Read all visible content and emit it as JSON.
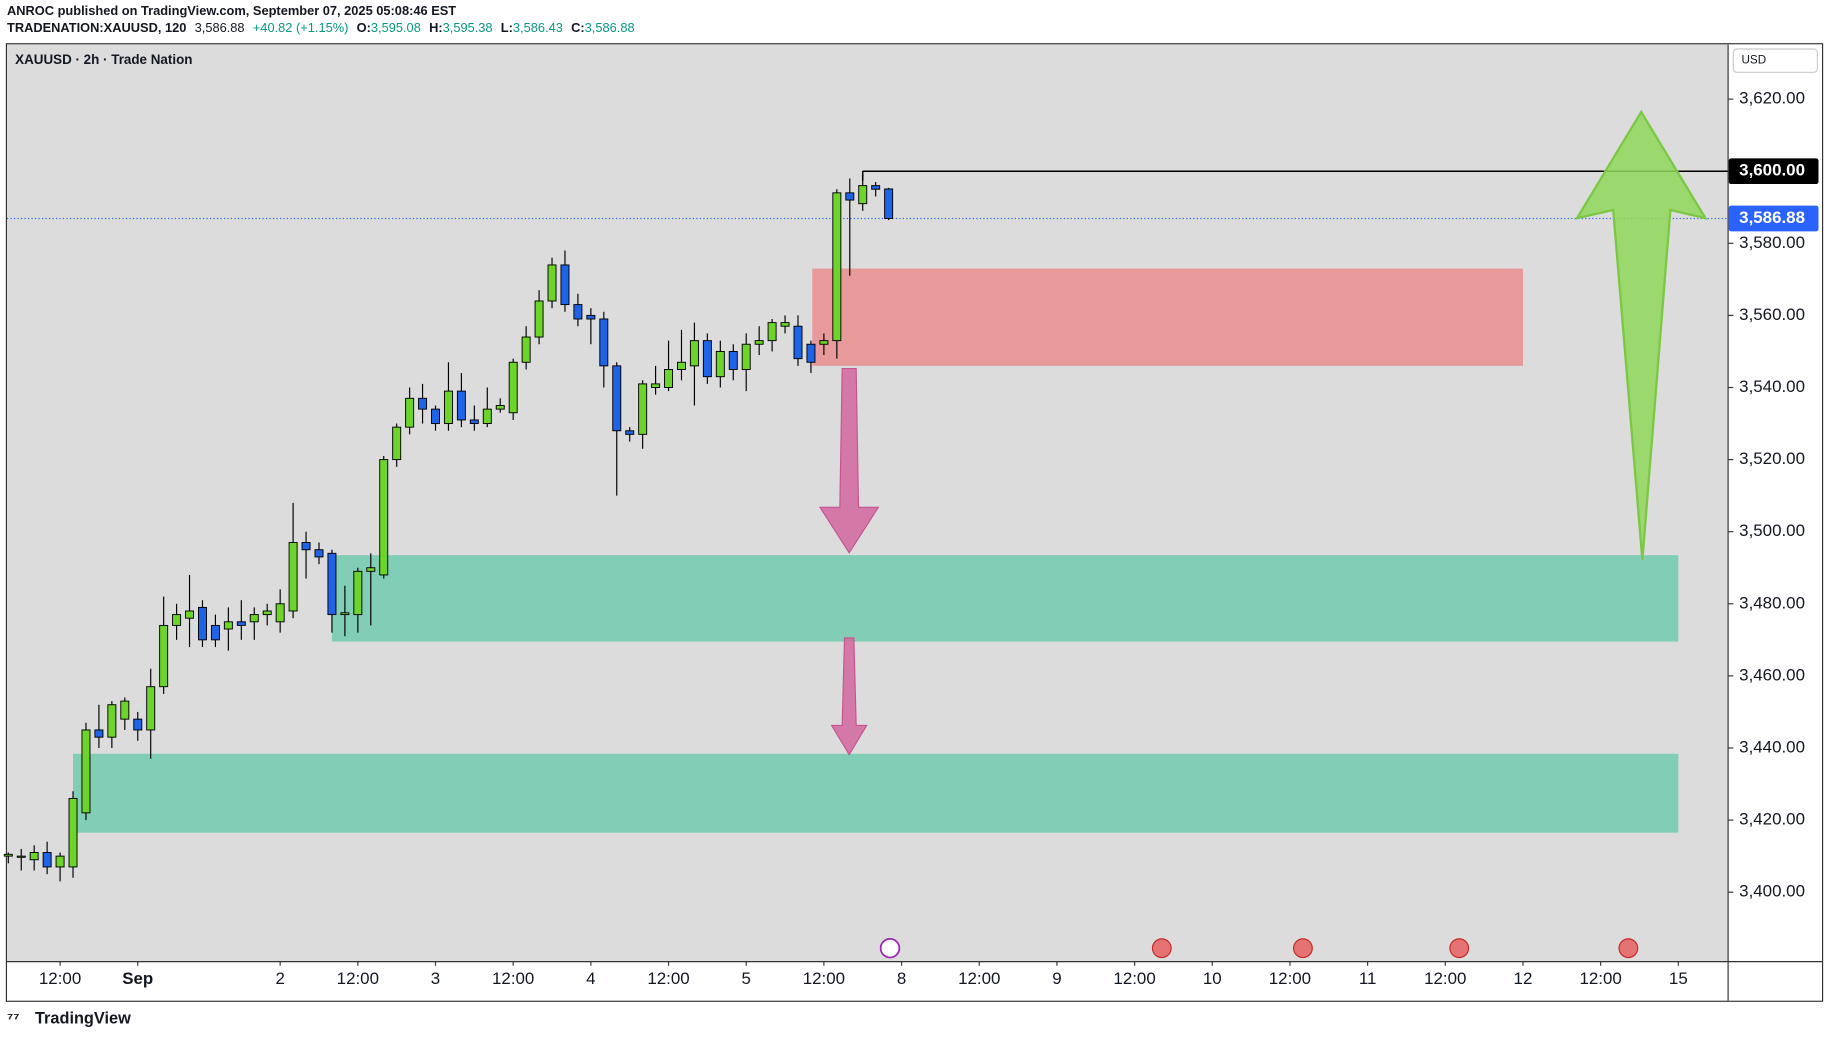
{
  "header": {
    "line1": "ANROC published on TradingView.com, September 07, 2025 05:08:46 EST",
    "symbol": "TRADENATION:XAUUSD, 120",
    "last": "3,586.88",
    "change": "+40.82 (+1.15%)",
    "o_key": "O:",
    "o": "3,595.08",
    "h_key": "H:",
    "h": "3,595.38",
    "l_key": "L:",
    "l": "3,586.43",
    "c_key": "C:",
    "c": "3,586.88"
  },
  "footer": "TradingView",
  "chart_data": {
    "type": "candlestick",
    "title": "XAUUSD · 2h · Trade Nation",
    "currency": "USD",
    "up_color": "#6cd42a",
    "down_color": "#1f63e6",
    "open": [
      3410,
      3410,
      3409,
      3411,
      3407,
      3407,
      3422,
      3445,
      3443,
      3448,
      3448,
      3445,
      3457,
      3474,
      3476,
      3479,
      3474,
      3473,
      3475,
      3475,
      3477,
      3475,
      3478,
      3497,
      3495,
      3494,
      3477,
      3477,
      3489,
      3488,
      3520,
      3529,
      3537,
      3534,
      3530,
      3539,
      3531,
      3530,
      3534,
      3533,
      3547,
      3554,
      3564,
      3574,
      3563,
      3560,
      3559,
      3546,
      3528,
      3527,
      3540,
      3540,
      3545,
      3546,
      3553,
      3543,
      3550,
      3545,
      3552,
      3553,
      3557,
      3557,
      3552,
      3552,
      3553,
      3594,
      3591,
      3596,
      3595.08
    ],
    "high": [
      3411,
      3412,
      3413,
      3414,
      3411,
      3428,
      3447,
      3452,
      3453,
      3454,
      3450,
      3462,
      3482,
      3480,
      3488,
      3481,
      3477,
      3479,
      3481,
      3479,
      3480,
      3484,
      3508,
      3500,
      3497,
      3495,
      3485,
      3490,
      3494,
      3521,
      3530,
      3540,
      3541,
      3535,
      3547,
      3544,
      3535,
      3540,
      3537,
      3548,
      3557,
      3567,
      3576,
      3578,
      3566,
      3562,
      3561,
      3547,
      3529,
      3542,
      3546,
      3553,
      3556,
      3558,
      3555,
      3553,
      3552,
      3555,
      3557,
      3559,
      3560,
      3560,
      3553,
      3555,
      3595,
      3598,
      3600,
      3597,
      3595.38
    ],
    "low": [
      3408,
      3406,
      3406,
      3405,
      3403,
      3404,
      3420,
      3440,
      3440,
      3445,
      3442,
      3437,
      3455,
      3470,
      3468,
      3468,
      3468,
      3467,
      3470,
      3470,
      3474,
      3472,
      3476,
      3487,
      3491,
      3472,
      3471,
      3472,
      3474,
      3487,
      3518,
      3527,
      3530,
      3528,
      3528,
      3529,
      3528,
      3529,
      3533,
      3531,
      3545,
      3552,
      3562,
      3561,
      3557,
      3552,
      3540,
      3510,
      3525,
      3523,
      3538,
      3539,
      3542,
      3535,
      3541,
      3540,
      3542,
      3539,
      3549,
      3550,
      3555,
      3546,
      3544,
      3549,
      3548,
      3571,
      3589,
      3593,
      3586.43
    ],
    "close": [
      3410.5,
      3410,
      3411,
      3407,
      3410,
      3426,
      3445,
      3443,
      3452,
      3453,
      3445,
      3457,
      3474,
      3477,
      3478,
      3470,
      3470,
      3475,
      3474,
      3477,
      3478,
      3480,
      3497,
      3495,
      3493,
      3477,
      3477.5,
      3489,
      3490,
      3520,
      3529,
      3537,
      3534,
      3530,
      3539,
      3531,
      3530,
      3534,
      3535,
      3547,
      3554,
      3564,
      3574,
      3563,
      3559,
      3559,
      3546,
      3528,
      3527,
      3541,
      3541,
      3545,
      3547,
      3553,
      3543,
      3550,
      3545,
      3552,
      3553,
      3558,
      3558,
      3548,
      3547,
      3553,
      3594,
      3592,
      3596,
      3595,
      3586.88
    ],
    "xlim": [
      -0.1,
      132.8
    ],
    "xticks": [
      {
        "value": 4,
        "label": "12:00"
      },
      {
        "value": 10,
        "label": "Sep"
      },
      {
        "value": 21,
        "label": "2"
      },
      {
        "value": 27,
        "label": "12:00"
      },
      {
        "value": 33,
        "label": "3"
      },
      {
        "value": 39,
        "label": "12:00"
      },
      {
        "value": 45,
        "label": "4"
      },
      {
        "value": 51,
        "label": "12:00"
      },
      {
        "value": 57,
        "label": "5"
      },
      {
        "value": 63,
        "label": "12:00"
      },
      {
        "value": 69,
        "label": "8"
      },
      {
        "value": 75,
        "label": "12:00"
      },
      {
        "value": 81,
        "label": "9"
      },
      {
        "value": 87,
        "label": "12:00"
      },
      {
        "value": 93,
        "label": "10"
      },
      {
        "value": 99,
        "label": "12:00"
      },
      {
        "value": 105,
        "label": "11"
      },
      {
        "value": 111,
        "label": "12:00"
      },
      {
        "value": 117,
        "label": "12"
      },
      {
        "value": 123,
        "label": "12:00"
      },
      {
        "value": 129,
        "label": "15"
      }
    ],
    "ylim": [
      3380.9,
      3635.2
    ],
    "yticks": [
      {
        "value": 3400,
        "label": "3,400.00"
      },
      {
        "value": 3420,
        "label": "3,420.00"
      },
      {
        "value": 3440,
        "label": "3,440.00"
      },
      {
        "value": 3460,
        "label": "3,460.00"
      },
      {
        "value": 3480,
        "label": "3,480.00"
      },
      {
        "value": 3500,
        "label": "3,500.00"
      },
      {
        "value": 3520,
        "label": "3,520.00"
      },
      {
        "value": 3540,
        "label": "3,540.00"
      },
      {
        "value": 3560,
        "label": "3,560.00"
      },
      {
        "value": 3580,
        "label": "3,580.00"
      },
      {
        "value": 3600,
        "label": "3,600.00"
      },
      {
        "value": 3620,
        "label": "3,620.00"
      }
    ],
    "zones": [
      {
        "color": "#e89a9a",
        "xlim": [
          62.1,
          117
        ],
        "ylim": [
          3546,
          3573
        ]
      },
      {
        "color": "#82cdb5",
        "xlim": [
          25,
          129
        ],
        "ylim": [
          3469.5,
          3493.5
        ]
      },
      {
        "color": "#82cdb5",
        "xlim": [
          5,
          129
        ],
        "ylim": [
          3416.5,
          3438.4
        ]
      }
    ],
    "level": {
      "value": 3600,
      "label": "3,600.00",
      "from": 66,
      "color": "#000000"
    },
    "last_price": {
      "value": 3586.88,
      "label": "3,586.88",
      "color": "#2962ff"
    }
  }
}
